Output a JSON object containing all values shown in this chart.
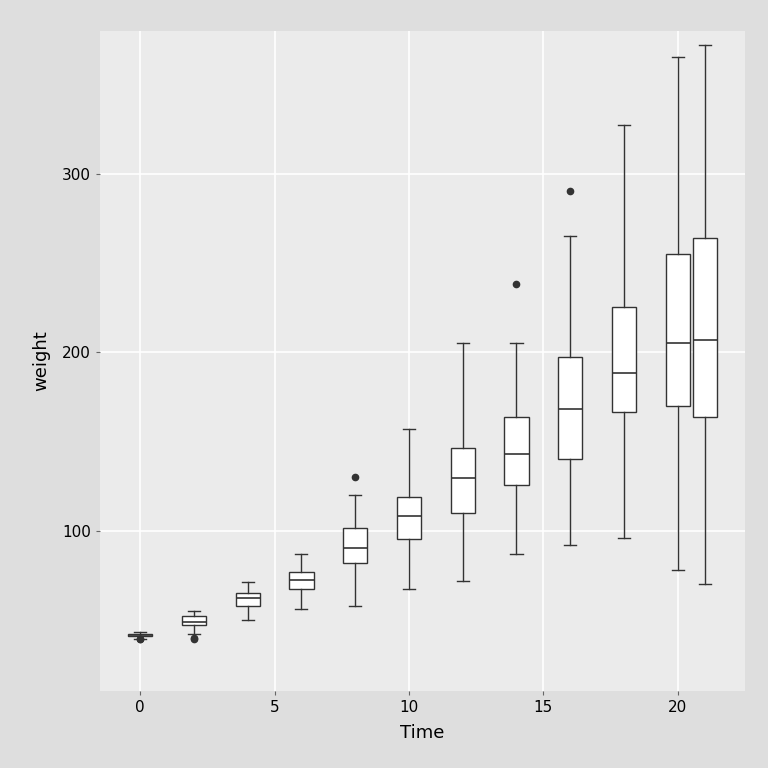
{
  "xlabel": "Time",
  "ylabel": "weight",
  "background_color": "#DEDEDE",
  "panel_color": "#EBEBEB",
  "grid_color": "#FFFFFF",
  "box_facecolor": "#FFFFFF",
  "box_edgecolor": "#333333",
  "whisker_color": "#333333",
  "median_color": "#333333",
  "flier_color": "#333333",
  "ylim": [
    10,
    380
  ],
  "yticks": [
    100,
    200,
    300
  ],
  "xlim": [
    -1.5,
    22.5
  ],
  "xticks": [
    0,
    5,
    10,
    15,
    20
  ],
  "time_points": [
    0,
    2,
    4,
    6,
    8,
    10,
    12,
    14,
    16,
    18,
    20,
    21
  ],
  "box_width": 0.9,
  "box_stats": {
    "0": {
      "q1": 41.0,
      "median": 41.0,
      "q3": 42.25,
      "whislo": 39.0,
      "whishi": 43.0,
      "fliers": [
        39,
        39
      ]
    },
    "2": {
      "q1": 47.25,
      "median": 49.0,
      "q3": 52.0,
      "whislo": 42.0,
      "whishi": 55.0,
      "fliers": [
        39,
        40
      ]
    },
    "4": {
      "q1": 58.0,
      "median": 62.0,
      "q3": 65.0,
      "whislo": 50.0,
      "whishi": 71.0,
      "fliers": []
    },
    "6": {
      "q1": 67.5,
      "median": 72.5,
      "q3": 76.5,
      "whislo": 56.0,
      "whishi": 87.0,
      "fliers": []
    },
    "8": {
      "q1": 82.0,
      "median": 90.0,
      "q3": 101.5,
      "whislo": 58.0,
      "whishi": 120.0,
      "fliers": [
        130
      ]
    },
    "10": {
      "q1": 95.0,
      "median": 108.0,
      "q3": 119.0,
      "whislo": 67.0,
      "whishi": 157.0,
      "fliers": []
    },
    "12": {
      "q1": 110.0,
      "median": 129.5,
      "q3": 146.0,
      "whislo": 72.0,
      "whishi": 205.0,
      "fliers": []
    },
    "14": {
      "q1": 125.5,
      "median": 143.0,
      "q3": 163.5,
      "whislo": 87.0,
      "whishi": 205.0,
      "fliers": [
        238
      ]
    },
    "16": {
      "q1": 140.0,
      "median": 168.0,
      "q3": 197.0,
      "whislo": 92.0,
      "whishi": 265.0,
      "fliers": [
        290
      ]
    },
    "18": {
      "q1": 166.5,
      "median": 188.0,
      "q3": 225.0,
      "whislo": 96.0,
      "whishi": 327.0,
      "fliers": []
    },
    "20": {
      "q1": 170.0,
      "median": 205.0,
      "q3": 255.0,
      "whislo": 78.0,
      "whishi": 365.0,
      "fliers": []
    },
    "21": {
      "q1": 163.5,
      "median": 206.5,
      "q3": 264.0,
      "whislo": 70.0,
      "whishi": 372.0,
      "fliers": []
    }
  }
}
